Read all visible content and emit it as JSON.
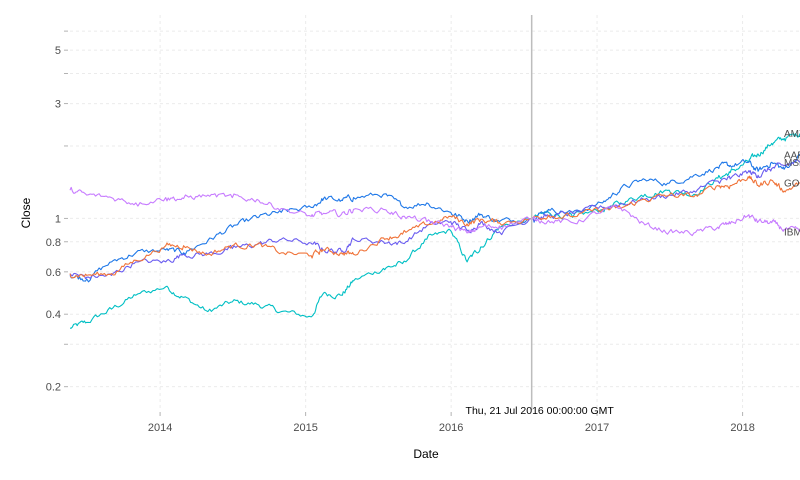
{
  "chart_data": {
    "type": "line",
    "xlabel": "Date",
    "ylabel": "Close",
    "y_scale": "log",
    "xlim": [
      "2013-05-20",
      "2018-05-25"
    ],
    "ylim": [
      0.16,
      7.0
    ],
    "grid": true,
    "x_ticks": [
      "2014",
      "2015",
      "2016",
      "2017",
      "2018"
    ],
    "y_ticks": [
      {
        "value": 0.2,
        "label": "0.2"
      },
      {
        "value": 0.3,
        "label": ""
      },
      {
        "value": 0.4,
        "label": "0.4"
      },
      {
        "value": 0.6,
        "label": "0.6"
      },
      {
        "value": 0.8,
        "label": "0.8"
      },
      {
        "value": 1,
        "label": "1"
      },
      {
        "value": 2,
        "label": ""
      },
      {
        "value": 3,
        "label": "3"
      },
      {
        "value": 4,
        "label": ""
      },
      {
        "value": 5,
        "label": "5"
      },
      {
        "value": 6,
        "label": ""
      }
    ],
    "hover": {
      "date": "2016-07-21",
      "label": "Thu, 21 Jul 2016 00:00:00 GMT"
    },
    "series": [
      {
        "name": "AMZN",
        "end_label": "AMZN",
        "color": "#00bfc4",
        "dates": [
          "2013-05-20",
          "2013-07-01",
          "2013-09-01",
          "2013-11-01",
          "2014-01-15",
          "2014-03-01",
          "2014-05-01",
          "2014-07-01",
          "2014-09-01",
          "2014-11-01",
          "2015-01-15",
          "2015-02-15",
          "2015-04-01",
          "2015-05-01",
          "2015-07-15",
          "2015-09-01",
          "2015-11-01",
          "2015-12-31",
          "2016-02-10",
          "2016-03-15",
          "2016-05-01",
          "2016-07-21",
          "2016-09-01",
          "2016-11-01",
          "2017-01-15",
          "2017-03-01",
          "2017-05-01",
          "2017-07-01",
          "2017-09-01",
          "2017-10-31",
          "2017-12-01",
          "2018-01-15",
          "2018-02-09",
          "2018-03-15",
          "2018-04-15",
          "2018-05-25"
        ],
        "values": [
          0.35,
          0.37,
          0.42,
          0.48,
          0.52,
          0.47,
          0.41,
          0.45,
          0.44,
          0.41,
          0.39,
          0.49,
          0.48,
          0.55,
          0.62,
          0.65,
          0.82,
          0.89,
          0.66,
          0.76,
          0.92,
          1.0,
          1.06,
          1.01,
          1.09,
          1.16,
          1.26,
          1.31,
          1.26,
          1.47,
          1.55,
          1.72,
          1.85,
          2.05,
          2.15,
          2.25
        ]
      },
      {
        "name": "AAPL",
        "end_label": "AAPL",
        "color": "#1f78e8",
        "dates": [
          "2013-05-20",
          "2013-07-01",
          "2013-09-01",
          "2013-11-01",
          "2014-01-15",
          "2014-03-01",
          "2014-05-01",
          "2014-07-01",
          "2014-09-01",
          "2014-11-01",
          "2015-01-15",
          "2015-02-15",
          "2015-04-01",
          "2015-05-01",
          "2015-07-15",
          "2015-09-01",
          "2015-11-01",
          "2015-12-31",
          "2016-02-10",
          "2016-03-15",
          "2016-05-01",
          "2016-07-21",
          "2016-09-01",
          "2016-11-01",
          "2017-01-15",
          "2017-03-01",
          "2017-05-01",
          "2017-07-01",
          "2017-09-01",
          "2017-10-31",
          "2017-12-01",
          "2018-01-15",
          "2018-02-09",
          "2018-03-15",
          "2018-04-15",
          "2018-05-25"
        ],
        "values": [
          0.58,
          0.56,
          0.66,
          0.72,
          0.74,
          0.72,
          0.81,
          0.92,
          1.01,
          1.06,
          1.11,
          1.21,
          1.19,
          1.22,
          1.26,
          1.12,
          1.16,
          1.06,
          0.98,
          1.04,
          0.97,
          1.0,
          1.09,
          1.06,
          1.16,
          1.33,
          1.45,
          1.4,
          1.51,
          1.63,
          1.66,
          1.71,
          1.57,
          1.71,
          1.6,
          1.83
        ]
      },
      {
        "name": "MSFT",
        "end_label": "MSFT",
        "color": "#6a5cf0",
        "dates": [
          "2013-05-20",
          "2013-07-01",
          "2013-09-01",
          "2013-11-01",
          "2014-01-15",
          "2014-03-01",
          "2014-05-01",
          "2014-07-01",
          "2014-09-01",
          "2014-11-01",
          "2015-01-15",
          "2015-02-15",
          "2015-04-01",
          "2015-05-01",
          "2015-07-15",
          "2015-09-01",
          "2015-11-01",
          "2015-12-31",
          "2016-02-10",
          "2016-03-15",
          "2016-05-01",
          "2016-07-21",
          "2016-09-01",
          "2016-11-01",
          "2017-01-15",
          "2017-03-01",
          "2017-05-01",
          "2017-07-01",
          "2017-09-01",
          "2017-10-31",
          "2017-12-01",
          "2018-01-15",
          "2018-02-09",
          "2018-03-15",
          "2018-04-15",
          "2018-05-25"
        ],
        "values": [
          0.59,
          0.57,
          0.58,
          0.66,
          0.66,
          0.71,
          0.71,
          0.75,
          0.78,
          0.82,
          0.79,
          0.74,
          0.73,
          0.82,
          0.8,
          0.79,
          0.93,
          0.97,
          0.89,
          0.96,
          0.88,
          1.0,
          1.02,
          1.05,
          1.11,
          1.15,
          1.2,
          1.25,
          1.3,
          1.43,
          1.46,
          1.56,
          1.51,
          1.61,
          1.66,
          1.71
        ]
      },
      {
        "name": "GOOG",
        "end_label": "GOOG",
        "color": "#f0743a",
        "dates": [
          "2013-05-20",
          "2013-07-01",
          "2013-09-01",
          "2013-11-01",
          "2014-01-15",
          "2014-03-01",
          "2014-05-01",
          "2014-07-01",
          "2014-09-01",
          "2014-11-01",
          "2015-01-15",
          "2015-02-15",
          "2015-04-01",
          "2015-05-01",
          "2015-07-15",
          "2015-09-01",
          "2015-11-01",
          "2015-12-31",
          "2016-02-10",
          "2016-03-15",
          "2016-05-01",
          "2016-07-21",
          "2016-09-01",
          "2016-11-01",
          "2017-01-15",
          "2017-03-01",
          "2017-05-01",
          "2017-07-01",
          "2017-09-01",
          "2017-10-31",
          "2017-12-01",
          "2018-01-15",
          "2018-02-09",
          "2018-03-15",
          "2018-04-15",
          "2018-05-25"
        ],
        "values": [
          0.59,
          0.58,
          0.59,
          0.67,
          0.77,
          0.77,
          0.71,
          0.77,
          0.78,
          0.72,
          0.7,
          0.74,
          0.72,
          0.71,
          0.83,
          0.86,
          0.94,
          1.02,
          0.95,
          0.99,
          0.96,
          1.0,
          1.03,
          1.02,
          1.09,
          1.1,
          1.2,
          1.25,
          1.23,
          1.37,
          1.37,
          1.49,
          1.37,
          1.44,
          1.3,
          1.4
        ]
      },
      {
        "name": "IBM",
        "end_label": "IBM",
        "color": "#c77cff",
        "dates": [
          "2013-05-20",
          "2013-07-01",
          "2013-09-01",
          "2013-11-01",
          "2014-01-15",
          "2014-03-01",
          "2014-05-01",
          "2014-07-01",
          "2014-09-01",
          "2014-11-01",
          "2015-01-15",
          "2015-02-15",
          "2015-04-01",
          "2015-05-01",
          "2015-07-15",
          "2015-09-01",
          "2015-11-01",
          "2015-12-31",
          "2016-02-10",
          "2016-03-15",
          "2016-05-01",
          "2016-07-21",
          "2016-09-01",
          "2016-11-01",
          "2017-01-15",
          "2017-03-01",
          "2017-05-01",
          "2017-07-01",
          "2017-09-01",
          "2017-10-31",
          "2017-12-01",
          "2018-01-15",
          "2018-02-09",
          "2018-03-15",
          "2018-04-15",
          "2018-05-25"
        ],
        "values": [
          1.31,
          1.25,
          1.22,
          1.16,
          1.22,
          1.21,
          1.25,
          1.22,
          1.2,
          1.1,
          1.02,
          1.05,
          1.04,
          1.09,
          1.09,
          1.02,
          0.97,
          0.93,
          0.87,
          0.92,
          0.93,
          1.0,
          0.98,
          0.96,
          1.07,
          1.11,
          0.94,
          0.88,
          0.87,
          0.92,
          0.95,
          1.03,
          0.97,
          0.96,
          0.9,
          0.88
        ]
      }
    ]
  }
}
